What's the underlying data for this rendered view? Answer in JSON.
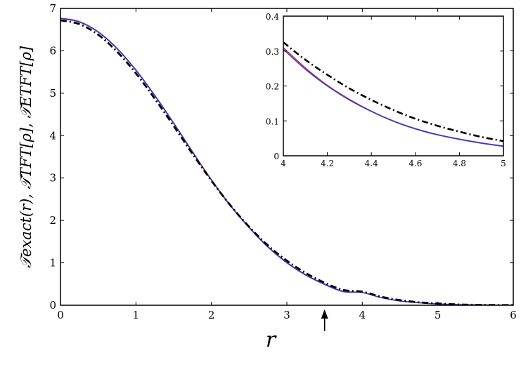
{
  "chart_data": [
    {
      "type": "line",
      "xlabel": "r",
      "ylabel": "𝒯exact(r), 𝒯TFT[ρ], 𝒯ETFT[ρ]",
      "xlim": [
        0,
        6
      ],
      "ylim": [
        0,
        7
      ],
      "x_ticks": [
        "0",
        "1",
        "2",
        "3",
        "4",
        "5",
        "6"
      ],
      "y_ticks": [
        "0",
        "1",
        "2",
        "3",
        "4",
        "5",
        "6",
        "7"
      ],
      "grid": false,
      "annotation": {
        "type": "arrow",
        "at_x": 3.5,
        "direction": "up"
      },
      "x": [
        0,
        0.25,
        0.5,
        0.75,
        1,
        1.25,
        1.5,
        1.75,
        2,
        2.25,
        2.5,
        2.75,
        3,
        3.25,
        3.5,
        3.75,
        4,
        4.25,
        4.5,
        4.75,
        5,
        5.25,
        5.5,
        5.75,
        6
      ],
      "series": [
        {
          "color": "#d62728",
          "style": "solid",
          "width": 1.6,
          "values": [
            6.77,
            6.69,
            6.45,
            6.06,
            5.55,
            4.95,
            4.3,
            3.62,
            2.96,
            2.36,
            1.84,
            1.38,
            1.01,
            0.72,
            0.5,
            0.33,
            0.3,
            0.18,
            0.1,
            0.06,
            0.03,
            0.015,
            0.008,
            0.004,
            0.002
          ]
        },
        {
          "color": "#2b3fd6",
          "style": "solid",
          "width": 1.6,
          "values": [
            6.76,
            6.68,
            6.44,
            6.05,
            5.54,
            4.94,
            4.29,
            3.61,
            2.95,
            2.35,
            1.83,
            1.37,
            1.0,
            0.71,
            0.49,
            0.32,
            0.3,
            0.18,
            0.1,
            0.06,
            0.03,
            0.015,
            0.008,
            0.004,
            0.002
          ]
        },
        {
          "color": "#000000",
          "style": "dashdot",
          "width": 2.8,
          "values": [
            6.72,
            6.63,
            6.38,
            5.98,
            5.47,
            4.87,
            4.23,
            3.57,
            2.94,
            2.36,
            1.85,
            1.41,
            1.05,
            0.76,
            0.53,
            0.36,
            0.32,
            0.2,
            0.12,
            0.07,
            0.04,
            0.02,
            0.01,
            0.005,
            0.003
          ]
        }
      ]
    },
    {
      "type": "line",
      "inset": true,
      "xlim": [
        4,
        5
      ],
      "ylim": [
        0,
        0.4
      ],
      "x_ticks": [
        "4",
        "4.2",
        "4.4",
        "4.6",
        "4.8",
        "5"
      ],
      "y_ticks": [
        "0",
        "0.1",
        "0.2",
        "0.3",
        "0.4"
      ],
      "x": [
        4,
        4.1,
        4.2,
        4.3,
        4.4,
        4.5,
        4.6,
        4.7,
        4.8,
        4.9,
        5
      ],
      "series": [
        {
          "color": "#d62728",
          "style": "solid",
          "width": 1.4,
          "values": [
            0.31,
            0.252,
            0.202,
            0.162,
            0.128,
            0.1,
            0.078,
            0.061,
            0.048,
            0.037,
            0.028
          ]
        },
        {
          "color": "#2b3fd6",
          "style": "solid",
          "width": 1.6,
          "values": [
            0.305,
            0.248,
            0.2,
            0.16,
            0.127,
            0.099,
            0.077,
            0.06,
            0.047,
            0.036,
            0.027
          ]
        },
        {
          "color": "#000000",
          "style": "dashdot",
          "width": 2.6,
          "values": [
            0.325,
            0.275,
            0.232,
            0.193,
            0.16,
            0.131,
            0.106,
            0.086,
            0.069,
            0.054,
            0.042
          ]
        }
      ]
    }
  ]
}
